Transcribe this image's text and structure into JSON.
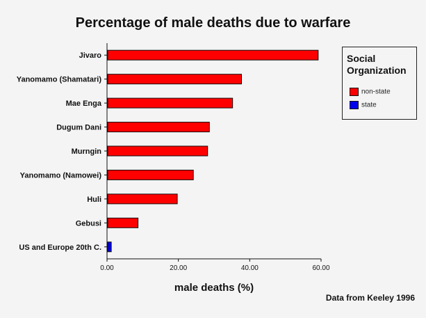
{
  "chart_data": {
    "type": "bar",
    "orientation": "horizontal",
    "title": "Percentage of male deaths due to warfare",
    "xlabel": "male deaths (%)",
    "ylabel": "",
    "xlim": [
      0,
      60
    ],
    "x_ticks": [
      "0.00",
      "20.00",
      "40.00",
      "60.00"
    ],
    "categories": [
      "Jivaro",
      "Yanomamo (Shamatari)",
      "Mae Enga",
      "Dugum Dani",
      "Murngin",
      "Yanomamo (Namowei)",
      "Huli",
      "Gebusi",
      "US and Europe 20th C."
    ],
    "values": [
      59,
      37.5,
      35,
      28.5,
      28,
      24,
      19.5,
      8.5,
      1
    ],
    "groups": [
      "non-state",
      "non-state",
      "non-state",
      "non-state",
      "non-state",
      "non-state",
      "non-state",
      "non-state",
      "state"
    ],
    "legend": {
      "title_line1": "Social",
      "title_line2": "Organization",
      "placement": "right",
      "items": [
        {
          "label": "non-state",
          "color": "#ff0000"
        },
        {
          "label": "state",
          "color": "#0000ee"
        }
      ]
    },
    "grid": false
  },
  "source_note": "Data from Keeley 1996"
}
